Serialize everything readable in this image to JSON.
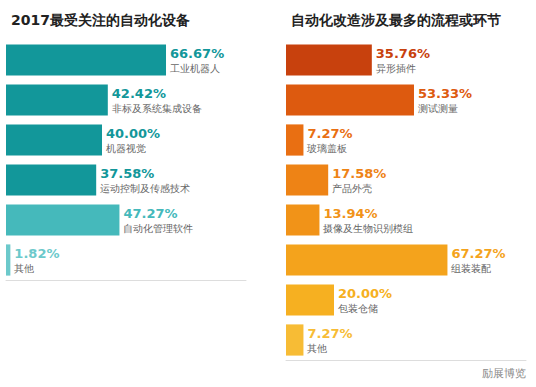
{
  "chart_data": [
    {
      "type": "bar",
      "orientation": "horizontal",
      "title": "2017最受关注的自动化设备",
      "categories": [
        "工业机器人",
        "非标及系统集成设备",
        "机器视觉",
        "运动控制及传感技术",
        "自动化管理软件",
        "其他"
      ],
      "values": [
        66.67,
        42.42,
        40.0,
        37.58,
        47.27,
        1.82
      ],
      "value_labels": [
        "66.67%",
        "42.42%",
        "40.00%",
        "37.58%",
        "47.27%",
        "1.82%"
      ],
      "colors": [
        "#12979a",
        "#12979a",
        "#12979a",
        "#12979a",
        "#45b9bb",
        "#6cc9cb"
      ],
      "data_labels": true,
      "tick_labels": false,
      "grid": false,
      "xlim": [
        0,
        100
      ],
      "xticks": [
        0,
        100
      ]
    },
    {
      "type": "bar",
      "orientation": "horizontal",
      "title": "自动化改造涉及最多的流程或环节",
      "categories": [
        "异形插件",
        "测试测量",
        "玻璃盖板",
        "产品外壳",
        "摄像及生物识别模组",
        "组装装配",
        "包装仓储",
        "其他"
      ],
      "values": [
        35.76,
        53.33,
        7.27,
        17.58,
        13.94,
        67.27,
        20.0,
        7.27
      ],
      "value_labels": [
        "35.76%",
        "53.33%",
        "7.27%",
        "17.58%",
        "13.94%",
        "67.27%",
        "20.00%",
        "7.27%"
      ],
      "colors": [
        "#c8410d",
        "#dd5a0f",
        "#e96f12",
        "#ee8315",
        "#f19318",
        "#f4a31c",
        "#f6b021",
        "#f7bc35"
      ],
      "data_labels": true,
      "tick_labels": false,
      "grid": false,
      "xlim": [
        0,
        100
      ],
      "xticks": [
        0,
        100
      ],
      "annotations": [
        "励展博览"
      ]
    }
  ]
}
